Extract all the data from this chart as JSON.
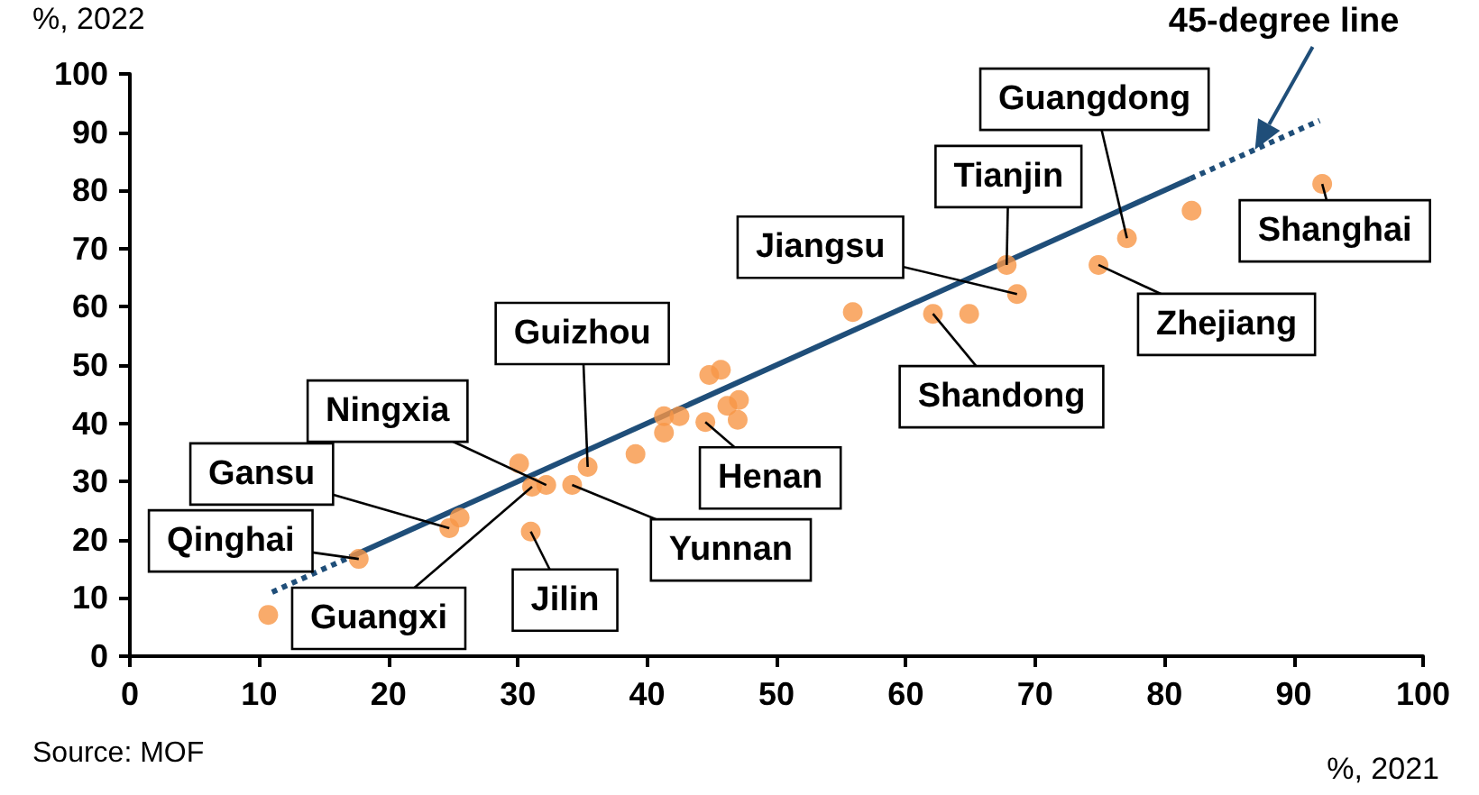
{
  "chart_data": {
    "type": "scatter",
    "xlabel": "%, 2021",
    "ylabel": "%, 2022",
    "xlim": [
      0,
      100
    ],
    "ylim": [
      0,
      100
    ],
    "xticks": [
      0,
      10,
      20,
      30,
      40,
      50,
      60,
      70,
      80,
      90,
      100
    ],
    "yticks": [
      0,
      10,
      20,
      30,
      40,
      50,
      60,
      70,
      80,
      90,
      100
    ],
    "grid": false,
    "series": [
      {
        "marker": "circle",
        "color": "#f79646",
        "x": [
          10.7,
          17.7,
          25.5,
          24.7,
          30.1,
          31.1,
          32.2,
          31,
          34.2,
          35.4,
          39.1,
          41.3,
          41.3,
          42.5,
          44.8,
          45.7,
          44.5,
          46.2,
          47.1,
          47,
          55.9,
          62.1,
          64.9,
          67.8,
          68.6,
          74.9,
          77.1,
          82.1,
          92.2
        ],
        "values": [
          7.1,
          16.7,
          23.8,
          22,
          33.1,
          29.1,
          29.4,
          21.4,
          29.4,
          32.5,
          34.7,
          38.4,
          41.2,
          41.2,
          48.3,
          49.2,
          40.2,
          43,
          44,
          40.6,
          59.1,
          58.8,
          58.8,
          67.2,
          62.2,
          67.2,
          71.8,
          76.5,
          81.1
        ]
      },
      {
        "type": "line",
        "marker": "none",
        "color": "#1f4e79",
        "line_style": "dotted",
        "x": [
          11,
          17
        ],
        "values": [
          11,
          17
        ]
      },
      {
        "type": "line",
        "marker": "none",
        "color": "#1f4e79",
        "line_style": "solid",
        "x": [
          17,
          82
        ],
        "values": [
          17,
          82
        ]
      },
      {
        "type": "line",
        "marker": "none",
        "color": "#1f4e79",
        "line_style": "dotted",
        "x": [
          82,
          92
        ],
        "values": [
          82,
          92
        ]
      }
    ],
    "annotations": [
      {
        "text": "Guangdong",
        "x": 77.1,
        "y": 71.8
      },
      {
        "text": "Tianjin",
        "x": 67.8,
        "y": 67.2
      },
      {
        "text": "Jiangsu",
        "x": 68.6,
        "y": 62.2
      },
      {
        "text": "Shanghai",
        "x": 92.2,
        "y": 81.1
      },
      {
        "text": "Zhejiang",
        "x": 74.9,
        "y": 67.2
      },
      {
        "text": "Shandong",
        "x": 62.1,
        "y": 58.8
      },
      {
        "text": "Guizhou",
        "x": 35.4,
        "y": 32.5
      },
      {
        "text": "Ningxia",
        "x": 32.2,
        "y": 29.4
      },
      {
        "text": "Henan",
        "x": 44.5,
        "y": 40.2
      },
      {
        "text": "Gansu",
        "x": 24.7,
        "y": 22
      },
      {
        "text": "Yunnan",
        "x": 34.2,
        "y": 29.4
      },
      {
        "text": "Qinghai",
        "x": 17.7,
        "y": 16.7
      },
      {
        "text": "Guangxi",
        "x": 31.1,
        "y": 29.1
      },
      {
        "text": "Jilin",
        "x": 31,
        "y": 21.4
      },
      "45-degree line",
      "Source: MOF"
    ]
  }
}
